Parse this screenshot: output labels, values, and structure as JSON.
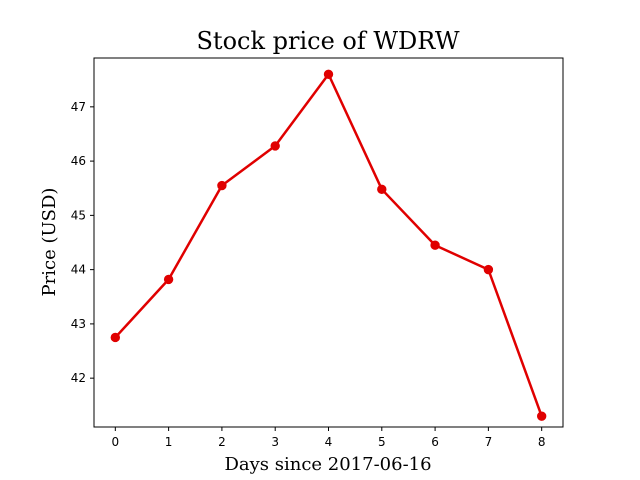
{
  "chart_data": {
    "type": "line",
    "title": "Stock price of WDRW",
    "xlabel": "Days since 2017-06-16",
    "ylabel": "Price (USD)",
    "x": [
      0,
      1,
      2,
      3,
      4,
      5,
      6,
      7,
      8
    ],
    "series": [
      {
        "values": [
          42.75,
          43.82,
          45.55,
          46.28,
          47.6,
          45.48,
          44.45,
          44.0,
          41.3
        ]
      }
    ],
    "xlim": [
      -0.4,
      8.4
    ],
    "ylim": [
      41.1,
      47.9
    ],
    "xticks": [
      0,
      1,
      2,
      3,
      4,
      5,
      6,
      7,
      8
    ],
    "yticks": [
      42,
      43,
      44,
      45,
      46,
      47
    ],
    "grid": false,
    "color": "#e00000"
  }
}
